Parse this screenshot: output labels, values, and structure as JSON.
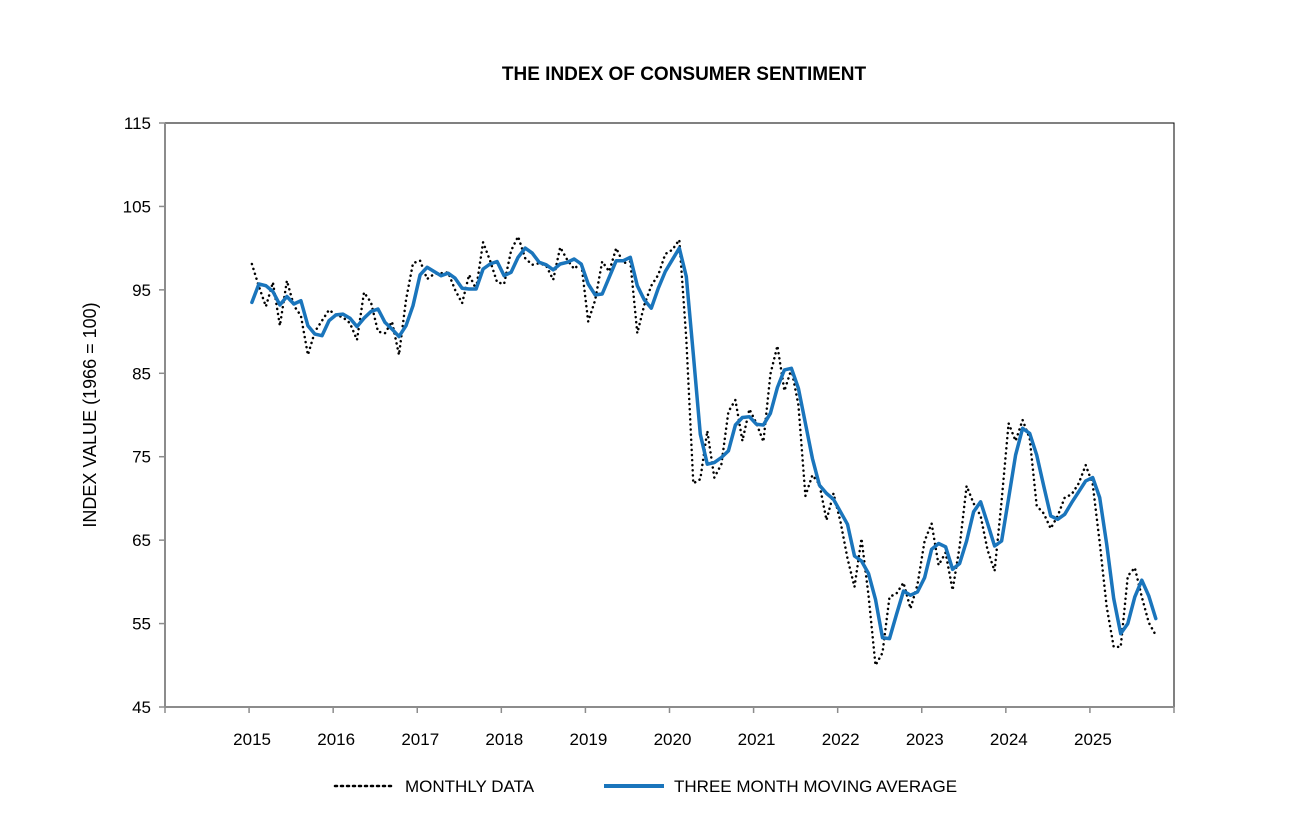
{
  "chart_data": {
    "type": "line",
    "title": "THE INDEX OF CONSUMER SENTIMENT",
    "xlabel": "",
    "ylabel": "INDEX VALUE (1966 = 100)",
    "ylim": [
      45,
      115
    ],
    "yticks": [
      "45",
      "55",
      "65",
      "75",
      "85",
      "95",
      "105",
      "115"
    ],
    "xticks": [
      "2015",
      "2016",
      "2017",
      "2018",
      "2019",
      "2020",
      "2021",
      "2022",
      "2023",
      "2024",
      "2025"
    ],
    "x_start": "2015-01",
    "x_end_year_axis": 2026,
    "frequency": "monthly",
    "legend_position": "bottom",
    "grid": false,
    "colors": {
      "monthly": "#000000",
      "average": "#1a75bc",
      "axis": "#8c8c8c"
    },
    "series": [
      {
        "name": "MONTHLY DATA",
        "style": "dotted",
        "values": [
          98.1,
          95.4,
          93.0,
          95.9,
          90.7,
          96.1,
          93.1,
          91.9,
          87.2,
          90.0,
          91.3,
          92.6,
          92.0,
          91.7,
          91.0,
          89.0,
          94.7,
          93.5,
          90.0,
          89.8,
          91.2,
          87.2,
          93.8,
          98.2,
          98.5,
          96.3,
          96.9,
          97.0,
          97.1,
          95.0,
          93.4,
          96.8,
          95.1,
          100.7,
          98.5,
          95.9,
          95.7,
          99.7,
          101.4,
          98.8,
          98.0,
          98.2,
          97.9,
          96.2,
          100.1,
          98.6,
          97.5,
          98.3,
          91.2,
          93.8,
          98.4,
          97.2,
          100.0,
          98.2,
          98.4,
          89.8,
          93.2,
          95.5,
          96.8,
          99.3,
          99.8,
          101.0,
          89.1,
          71.8,
          72.3,
          78.1,
          72.5,
          74.1,
          80.4,
          81.8,
          76.9,
          80.7,
          79.0,
          76.8,
          84.9,
          88.3,
          82.9,
          85.5,
          81.2,
          70.3,
          72.8,
          71.7,
          67.4,
          70.6,
          67.2,
          62.8,
          59.4,
          65.2,
          58.4,
          50.0,
          51.5,
          58.2,
          58.6,
          59.9,
          56.8,
          59.7,
          64.9,
          67.0,
          62.0,
          63.5,
          59.0,
          64.2,
          71.5,
          69.4,
          67.9,
          63.8,
          61.3,
          69.7,
          79.0,
          76.9,
          79.4,
          77.2,
          69.1,
          68.2,
          66.4,
          67.9,
          70.1,
          70.5,
          71.8,
          74.0,
          71.7,
          64.7,
          57.0,
          52.2,
          52.2,
          60.7,
          61.7,
          58.2,
          55.1,
          53.6
        ]
      },
      {
        "name": "THREE MONTH MOVING AVERAGE",
        "style": "solid",
        "values": [
          93.5,
          95.7,
          95.5,
          94.8,
          93.2,
          94.2,
          93.3,
          93.7,
          90.7,
          89.7,
          89.5,
          91.3,
          92.0,
          92.1,
          91.6,
          90.6,
          91.6,
          92.4,
          92.7,
          91.1,
          90.3,
          89.4,
          90.7,
          93.1,
          96.8,
          97.7,
          97.2,
          96.7,
          97.0,
          96.4,
          95.2,
          95.1,
          95.1,
          97.5,
          98.1,
          98.4,
          96.7,
          97.1,
          98.9,
          100.0,
          99.4,
          98.3,
          98.0,
          97.4,
          98.1,
          98.3,
          98.7,
          98.1,
          95.7,
          94.4,
          94.5,
          96.5,
          98.5,
          98.5,
          98.9,
          95.5,
          93.8,
          92.8,
          95.2,
          97.2,
          98.6,
          100.0,
          96.6,
          87.3,
          77.7,
          74.1,
          74.3,
          74.9,
          75.7,
          78.8,
          79.7,
          79.8,
          78.9,
          78.8,
          80.2,
          83.3,
          85.4,
          85.6,
          83.2,
          79.0,
          74.8,
          71.6,
          70.6,
          69.9,
          68.4,
          66.9,
          63.1,
          62.5,
          61.0,
          57.9,
          53.3,
          53.2,
          56.1,
          58.9,
          58.4,
          58.8,
          60.5,
          63.9,
          64.6,
          64.2,
          61.5,
          62.2,
          64.9,
          68.4,
          69.6,
          67.0,
          64.3,
          64.9,
          70.0,
          75.2,
          78.4,
          77.8,
          75.2,
          71.5,
          67.9,
          67.5,
          68.1,
          69.5,
          70.8,
          72.1,
          72.5,
          70.1,
          64.5,
          58.0,
          53.8,
          55.0,
          58.2,
          60.2,
          58.3,
          55.6
        ]
      }
    ]
  }
}
